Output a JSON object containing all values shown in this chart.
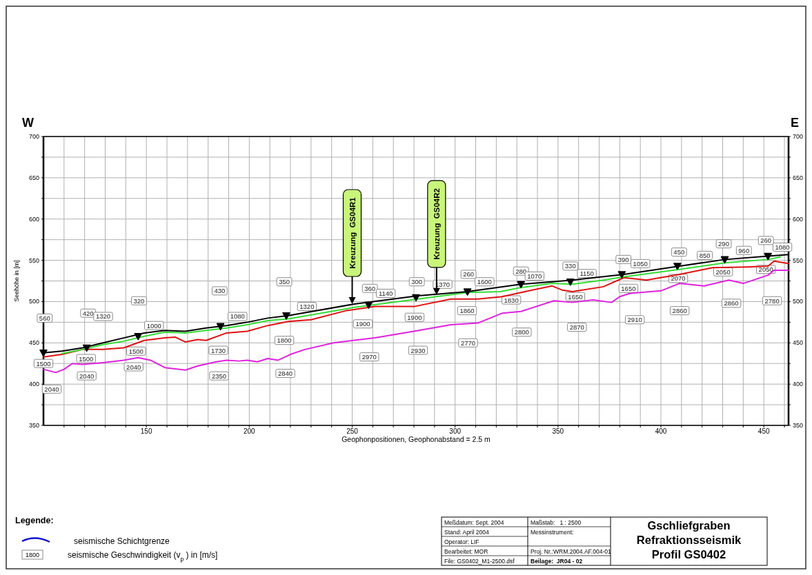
{
  "chart_data": {
    "type": "line",
    "title": "Gschliefgraben\nRefraktionsseismik\nProfil GS0402",
    "xlabel": "Geophonpositionen, Geophonabstand = 2.5 m",
    "ylabel": "Seehöhe in [m]",
    "xlim": [
      100,
      462
    ],
    "ylim": [
      350,
      700
    ],
    "y2lim": [
      350,
      700
    ],
    "xticks": [
      {
        "value": 110,
        "label": null
      },
      {
        "value": 120,
        "label": null
      },
      {
        "value": 130,
        "label": null
      },
      {
        "value": 140,
        "label": null
      },
      150,
      {
        "value": 160,
        "label": null
      },
      {
        "value": 170,
        "label": null
      },
      {
        "value": 180,
        "label": null
      },
      {
        "value": 190,
        "label": null
      },
      200,
      {
        "value": 210,
        "label": null
      },
      {
        "value": 220,
        "label": null
      },
      {
        "value": 230,
        "label": null
      },
      {
        "value": 240,
        "label": null
      },
      250,
      {
        "value": 260,
        "label": null
      },
      {
        "value": 270,
        "label": null
      },
      {
        "value": 280,
        "label": null
      },
      {
        "value": 290,
        "label": null
      },
      300,
      {
        "value": 310,
        "label": null
      },
      {
        "value": 320,
        "label": null
      },
      {
        "value": 330,
        "label": null
      },
      {
        "value": 340,
        "label": null
      },
      350,
      {
        "value": 360,
        "label": null
      },
      {
        "value": 370,
        "label": null
      },
      {
        "value": 380,
        "label": null
      },
      {
        "value": 390,
        "label": null
      },
      400,
      {
        "value": 410,
        "label": null
      },
      {
        "value": 420,
        "label": null
      },
      {
        "value": 430,
        "label": null
      },
      {
        "value": 440,
        "label": null
      },
      450,
      {
        "value": 460,
        "label": null
      }
    ],
    "yticks": [
      350,
      {
        "value": 375,
        "label": null
      },
      400,
      {
        "value": 425,
        "label": null
      },
      450,
      {
        "value": 475,
        "label": null
      },
      500,
      {
        "value": 525,
        "label": null
      },
      550,
      {
        "value": 575,
        "label": null
      },
      600,
      {
        "value": 625,
        "label": null
      },
      650,
      {
        "value": 675,
        "label": null
      },
      700
    ],
    "y2ticks": [
      350,
      {
        "value": 375,
        "label": null
      },
      400,
      {
        "value": 425,
        "label": null
      },
      450,
      {
        "value": 475,
        "label": null
      },
      500,
      {
        "value": 525,
        "label": null
      },
      550,
      {
        "value": 575,
        "label": null
      },
      600,
      {
        "value": 625,
        "label": null
      },
      650,
      {
        "value": 675,
        "label": null
      },
      700
    ],
    "grid": true,
    "series": [
      {
        "color": "#e01010",
        "x": [
          100,
          109,
          119,
          129,
          139,
          149,
          159,
          164,
          169,
          175,
          179,
          189,
          199,
          209,
          219,
          230,
          247,
          261,
          280,
          298,
          311,
          323,
          332,
          347,
          352,
          357,
          372,
          382,
          393,
          409,
          425,
          442,
          452,
          455,
          462
        ],
        "values": [
          433,
          436,
          442,
          442,
          444,
          453,
          456,
          457,
          451,
          454,
          453,
          462,
          464,
          471,
          476,
          478,
          489,
          494,
          494,
          503,
          503,
          506,
          511,
          519,
          514,
          512,
          518,
          529,
          526,
          533,
          541,
          542,
          543,
          549,
          546
        ]
      },
      {
        "color": "#e020e0",
        "x": [
          100,
          106,
          110,
          114,
          119,
          129,
          139,
          146,
          152,
          159,
          169,
          175,
          184,
          189,
          195,
          199,
          204,
          209,
          214,
          220,
          227,
          241,
          261,
          280,
          298,
          311,
          323,
          332,
          348,
          357,
          367,
          376,
          380,
          385,
          400,
          409,
          421,
          433,
          440,
          452,
          455,
          462
        ],
        "values": [
          418,
          414,
          418,
          425,
          424,
          426,
          429,
          432,
          429,
          420,
          417,
          422,
          427,
          429,
          428,
          429,
          427,
          431,
          429,
          436,
          442,
          450,
          456,
          464,
          472,
          474,
          486,
          488,
          501,
          499,
          502,
          499,
          506,
          510,
          513,
          522,
          519,
          526,
          522,
          532,
          538,
          538
        ]
      },
      {
        "color": "#33dd33",
        "x": [
          109,
          119,
          129,
          139,
          149,
          159,
          169,
          179,
          189,
          199,
          209,
          219,
          251,
          282,
          306,
          322,
          332,
          347,
          357,
          372,
          382,
          409,
          431,
          452,
          458
        ],
        "values": [
          437,
          442,
          448,
          452,
          458,
          463,
          462,
          465,
          468,
          472,
          477,
          479,
          493,
          503,
          511,
          512,
          517,
          522,
          521,
          526,
          530,
          539,
          547,
          551,
          554
        ]
      },
      {
        "color": "#000000",
        "x": [
          100,
          109,
          119,
          129,
          139,
          149,
          159,
          169,
          179,
          189,
          199,
          209,
          219,
          251,
          282,
          306,
          332,
          347,
          357,
          382,
          409,
          431,
          452,
          462
        ],
        "values": [
          438,
          440,
          444,
          450,
          456,
          462,
          465,
          464,
          468,
          471,
          475,
          480,
          483,
          497,
          507,
          512,
          521,
          524,
          526,
          533,
          543,
          551,
          555,
          557
        ]
      },
      {
        "type": "scatter",
        "marker": "triangle",
        "color": "#000000",
        "x": [
          100,
          121,
          146,
          186,
          218,
          258,
          281,
          306,
          332,
          356,
          381,
          408,
          431,
          452
        ],
        "values": [
          438,
          444,
          458,
          470,
          483,
          496,
          505,
          512,
          521,
          524,
          533,
          543,
          551,
          555
        ]
      }
    ],
    "annotations": [
      "W",
      "E",
      "Legende:",
      "1800",
      "seismische Schichtgrenze",
      "seismische Geschwindigkeit (v$_{p}$) in [m/s]",
      "Meßdatum: Sept. 2004",
      "Stand: April 2004",
      "Operator: LIF",
      "Bearbeitet: MOR",
      "File: GS0402_M1-2500.dsf",
      "Maßstab:   1 : 2500",
      "Messinstrument:",
      "Proj. Nr.:WRM.2004.AF.004-01",
      "Beilage:  JR04 - 02",
      {
        "text": "Kreuzung  GS04R1",
        "x": 250,
        "y": 497
      },
      {
        "text": "Kreuzung  GS04R2",
        "x": 291,
        "y": 508
      },
      {
        "text": "560",
        "x": 100.6,
        "y": 480
      },
      {
        "text": "420",
        "x": 121.7,
        "y": 486
      },
      {
        "text": "320",
        "x": 146.4,
        "y": 501
      },
      {
        "text": "430",
        "x": 185.6,
        "y": 513
      },
      {
        "text": "350",
        "x": 217,
        "y": 524
      },
      {
        "text": "360",
        "x": 258.6,
        "y": 516
      },
      {
        "text": "300",
        "x": 281.4,
        "y": 524
      },
      {
        "text": "260",
        "x": 306.5,
        "y": 533
      },
      {
        "text": "280",
        "x": 332,
        "y": 537
      },
      {
        "text": "330",
        "x": 356,
        "y": 543
      },
      {
        "text": "390",
        "x": 381.8,
        "y": 551
      },
      {
        "text": "450",
        "x": 408.8,
        "y": 560
      },
      {
        "text": "290",
        "x": 430.5,
        "y": 570
      },
      {
        "text": "260",
        "x": 451,
        "y": 574
      },
      {
        "text": "1320",
        "x": 129,
        "y": 482
      },
      {
        "text": "1000",
        "x": 153.7,
        "y": 471
      },
      {
        "text": "1080",
        "x": 194.3,
        "y": 482
      },
      {
        "text": "1320",
        "x": 228,
        "y": 494
      },
      {
        "text": "1140",
        "x": 266.3,
        "y": 510
      },
      {
        "text": "1370",
        "x": 293.9,
        "y": 521
      },
      {
        "text": "1600",
        "x": 314.3,
        "y": 524
      },
      {
        "text": "1070",
        "x": 338.6,
        "y": 531
      },
      {
        "text": "1150",
        "x": 364,
        "y": 534
      },
      {
        "text": "1050",
        "x": 390,
        "y": 546
      },
      {
        "text": "850",
        "x": 421.3,
        "y": 556
      },
      {
        "text": "960",
        "x": 440.3,
        "y": 562
      },
      {
        "text": "1080",
        "x": 459,
        "y": 566
      },
      {
        "text": "1500",
        "x": 100,
        "y": 425
      },
      {
        "text": "1500",
        "x": 120.7,
        "y": 431
      },
      {
        "text": "1500",
        "x": 145,
        "y": 440
      },
      {
        "text": "1730",
        "x": 185,
        "y": 441
      },
      {
        "text": "1800",
        "x": 217,
        "y": 453
      },
      {
        "text": "1900",
        "x": 255.2,
        "y": 473
      },
      {
        "text": "1900",
        "x": 280.3,
        "y": 481
      },
      {
        "text": "1860",
        "x": 305.8,
        "y": 489
      },
      {
        "text": "1830",
        "x": 327.3,
        "y": 502
      },
      {
        "text": "1650",
        "x": 358.4,
        "y": 506
      },
      {
        "text": "1650",
        "x": 384.2,
        "y": 516
      },
      {
        "text": "2070",
        "x": 408.4,
        "y": 528
      },
      {
        "text": "2050",
        "x": 430.2,
        "y": 536
      },
      {
        "text": "2050",
        "x": 451,
        "y": 539
      },
      {
        "text": "2040",
        "x": 104,
        "y": 394
      },
      {
        "text": "2040",
        "x": 121,
        "y": 410
      },
      {
        "text": "2040",
        "x": 143.8,
        "y": 421
      },
      {
        "text": "2350",
        "x": 185.3,
        "y": 410
      },
      {
        "text": "2840",
        "x": 217.5,
        "y": 413
      },
      {
        "text": "2970",
        "x": 258.3,
        "y": 433
      },
      {
        "text": "2930",
        "x": 282,
        "y": 441
      },
      {
        "text": "2770",
        "x": 306.3,
        "y": 450
      },
      {
        "text": "2800",
        "x": 332.4,
        "y": 463
      },
      {
        "text": "2870",
        "x": 359.2,
        "y": 469
      },
      {
        "text": "2910",
        "x": 387.3,
        "y": 478
      },
      {
        "text": "2860",
        "x": 409.1,
        "y": 489
      },
      {
        "text": "2860",
        "x": 434.2,
        "y": 498
      },
      {
        "text": "2780",
        "x": 454,
        "y": 501
      }
    ]
  }
}
